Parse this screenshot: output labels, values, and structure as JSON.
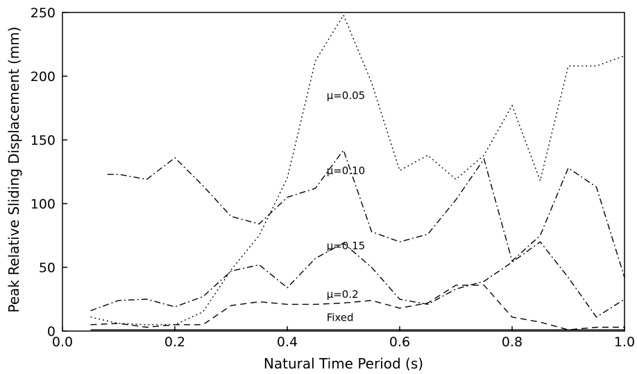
{
  "chart_data": {
    "type": "line",
    "title": "",
    "xlabel": "Natural Time  Period (s)",
    "ylabel": "Peak Relative  Sliding Displacement (mm)",
    "xlim": [
      0.0,
      1.0
    ],
    "ylim": [
      0,
      250
    ],
    "xticks": [
      "0.0",
      "0.2",
      "0.4",
      "0.6",
      "0.8",
      "1.0"
    ],
    "yticks": [
      "0",
      "50",
      "100",
      "150",
      "200",
      "250"
    ],
    "grid": false,
    "legend": "none",
    "series": [
      {
        "name": "μ=0.05",
        "dash": "dotted",
        "color": "#000000",
        "label_at": [
          0.47,
          182
        ],
        "points": [
          [
            0.05,
            11
          ],
          [
            0.1,
            6
          ],
          [
            0.15,
            5
          ],
          [
            0.2,
            5
          ],
          [
            0.25,
            15
          ],
          [
            0.3,
            48
          ],
          [
            0.35,
            75
          ],
          [
            0.4,
            120
          ],
          [
            0.45,
            212
          ],
          [
            0.5,
            248
          ],
          [
            0.55,
            195
          ],
          [
            0.6,
            126
          ],
          [
            0.65,
            138
          ],
          [
            0.7,
            119
          ],
          [
            0.75,
            138
          ],
          [
            0.8,
            177
          ],
          [
            0.85,
            118
          ],
          [
            0.9,
            208
          ],
          [
            0.95,
            208
          ],
          [
            1.0,
            216
          ]
        ]
      },
      {
        "name": "μ=0.10",
        "dash": "dashdot",
        "color": "#000000",
        "label_at": [
          0.47,
          123
        ],
        "points": [
          [
            0.08,
            123
          ],
          [
            0.1,
            123
          ],
          [
            0.15,
            119
          ],
          [
            0.2,
            136
          ],
          [
            0.25,
            114
          ],
          [
            0.3,
            90
          ],
          [
            0.35,
            84
          ],
          [
            0.4,
            105
          ],
          [
            0.45,
            112
          ],
          [
            0.5,
            142
          ],
          [
            0.55,
            78
          ],
          [
            0.6,
            70
          ],
          [
            0.65,
            76
          ],
          [
            0.7,
            103
          ],
          [
            0.75,
            135
          ],
          [
            0.8,
            55
          ],
          [
            0.85,
            75
          ],
          [
            0.9,
            128
          ],
          [
            0.95,
            113
          ],
          [
            1.0,
            42
          ]
        ]
      },
      {
        "name": "μ=0.15",
        "dash": "dashdot",
        "color": "#000000",
        "label_at": [
          0.47,
          64
        ],
        "points": [
          [
            0.05,
            16
          ],
          [
            0.1,
            24
          ],
          [
            0.15,
            25
          ],
          [
            0.2,
            19
          ],
          [
            0.25,
            27
          ],
          [
            0.3,
            47
          ],
          [
            0.35,
            52
          ],
          [
            0.4,
            34
          ],
          [
            0.45,
            57
          ],
          [
            0.5,
            69
          ],
          [
            0.55,
            50
          ],
          [
            0.6,
            25
          ],
          [
            0.65,
            21
          ],
          [
            0.7,
            33
          ],
          [
            0.75,
            39
          ],
          [
            0.8,
            54
          ],
          [
            0.85,
            70
          ],
          [
            0.9,
            42
          ],
          [
            0.95,
            11
          ],
          [
            1.0,
            25
          ]
        ]
      },
      {
        "name": "μ=0.2",
        "dash": "dashed",
        "color": "#000000",
        "label_at": [
          0.47,
          26
        ],
        "points": [
          [
            0.05,
            5
          ],
          [
            0.1,
            6
          ],
          [
            0.15,
            3
          ],
          [
            0.2,
            5
          ],
          [
            0.25,
            5
          ],
          [
            0.3,
            20
          ],
          [
            0.35,
            23
          ],
          [
            0.4,
            21
          ],
          [
            0.45,
            21
          ],
          [
            0.5,
            22
          ],
          [
            0.55,
            24
          ],
          [
            0.6,
            18
          ],
          [
            0.65,
            22
          ],
          [
            0.7,
            36
          ],
          [
            0.75,
            36
          ],
          [
            0.8,
            11
          ],
          [
            0.85,
            7
          ],
          [
            0.9,
            1
          ],
          [
            0.95,
            3
          ],
          [
            1.0,
            3
          ]
        ]
      },
      {
        "name": "Fixed",
        "dash": "solid",
        "color": "#000000",
        "label_at": [
          0.47,
          8
        ],
        "points": [
          [
            0.05,
            1
          ],
          [
            0.1,
            1
          ],
          [
            0.15,
            1
          ],
          [
            0.2,
            1
          ],
          [
            0.25,
            1
          ],
          [
            0.3,
            1
          ],
          [
            0.35,
            1
          ],
          [
            0.4,
            1
          ],
          [
            0.45,
            1
          ],
          [
            0.5,
            1
          ],
          [
            0.55,
            1
          ],
          [
            0.6,
            1
          ],
          [
            0.65,
            1
          ],
          [
            0.7,
            1
          ],
          [
            0.75,
            1
          ],
          [
            0.8,
            1
          ],
          [
            0.85,
            1
          ],
          [
            0.9,
            1
          ],
          [
            0.95,
            1
          ],
          [
            1.0,
            1
          ]
        ]
      }
    ]
  }
}
